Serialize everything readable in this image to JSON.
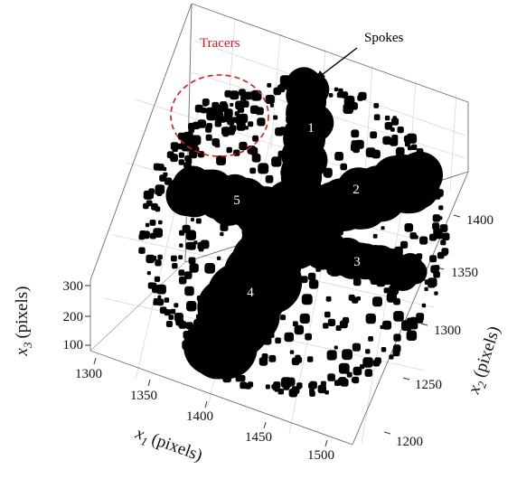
{
  "chart_data": {
    "type": "scatter",
    "dimensions": 3,
    "title": "",
    "axes": {
      "x1": {
        "label": "x",
        "subscript": "1",
        "unit": "(pixels)",
        "range": [
          1290,
          1530
        ],
        "ticks": [
          "1300",
          "1350",
          "1400",
          "1450",
          "1500"
        ]
      },
      "x2": {
        "label": "x",
        "subscript": "2",
        "unit": "(pixels)",
        "range": [
          1190,
          1420
        ],
        "ticks": [
          "1200",
          "1250",
          "1300",
          "1350",
          "1400"
        ]
      },
      "x3": {
        "label": "x",
        "subscript": "3",
        "unit": "(pixels)",
        "range": [
          80,
          320
        ],
        "ticks": [
          "100",
          "200",
          "300"
        ]
      }
    },
    "grid": true,
    "colors": {
      "points": "#000000",
      "annotation": "#e3161b",
      "text": "#000000",
      "label_on_points": "#ffffff"
    },
    "annotations": [
      {
        "text": "Tracers",
        "color": "#e3161b",
        "marker": "dashed circle"
      },
      {
        "text": "Spokes",
        "color": "#000000",
        "marker": "arrow"
      }
    ],
    "spoke_labels": [
      "1",
      "2",
      "3",
      "4",
      "5"
    ],
    "series": [
      {
        "points": "dense point cloud (particle reconstruction)"
      }
    ],
    "clusters": [
      {
        "kind": "spoke",
        "label": "1",
        "x1": 1422,
        "x2": 1395,
        "x3": 200
      },
      {
        "kind": "spoke",
        "label": "2",
        "x1": 1478,
        "x2": 1360,
        "x3": 200
      },
      {
        "kind": "spoke",
        "label": "3",
        "x1": 1472,
        "x2": 1300,
        "x3": 200
      },
      {
        "kind": "spoke",
        "label": "4",
        "x1": 1392,
        "x2": 1245,
        "x3": 200
      },
      {
        "kind": "spoke",
        "label": "5",
        "x1": 1378,
        "x2": 1355,
        "x3": 200
      },
      {
        "kind": "tracers",
        "x1": 1360,
        "x2": 1405,
        "x3": 230
      }
    ]
  }
}
